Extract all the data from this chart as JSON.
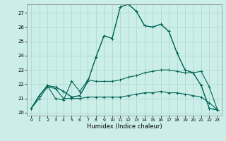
{
  "title": "",
  "xlabel": "Humidex (Indice chaleur)",
  "xlim": [
    -0.5,
    23.5
  ],
  "ylim": [
    19.8,
    27.6
  ],
  "xticks": [
    0,
    1,
    2,
    3,
    4,
    5,
    6,
    7,
    8,
    9,
    10,
    11,
    12,
    13,
    14,
    15,
    16,
    17,
    18,
    19,
    20,
    21,
    22,
    23
  ],
  "yticks": [
    20,
    21,
    22,
    23,
    24,
    25,
    26,
    27
  ],
  "background_color": "#cceee8",
  "grid_color": "#aad4ce",
  "line_color": "#006658",
  "series": [
    [
      20.3,
      21.2,
      21.9,
      21.8,
      21.5,
      21.1,
      21.2,
      22.2,
      23.9,
      25.4,
      25.2,
      27.4,
      27.6,
      27.1,
      26.1,
      26.0,
      26.2,
      25.7,
      24.2,
      23.0,
      22.8,
      21.9,
      20.3,
      20.2
    ],
    [
      20.3,
      21.2,
      21.9,
      21.8,
      21.5,
      21.1,
      21.2,
      22.2,
      23.9,
      25.4,
      25.2,
      27.4,
      27.6,
      27.1,
      26.1,
      26.0,
      26.2,
      25.7,
      24.2,
      23.0,
      22.8,
      21.9,
      20.3,
      20.2
    ],
    [
      20.3,
      21.2,
      21.9,
      21.0,
      20.9,
      22.2,
      21.5,
      22.3,
      22.2,
      22.2,
      22.2,
      22.3,
      22.5,
      22.6,
      22.8,
      22.9,
      23.0,
      23.0,
      22.9,
      22.8,
      22.8,
      22.9,
      21.8,
      20.2
    ],
    [
      20.3,
      21.0,
      21.8,
      21.7,
      21.0,
      21.0,
      21.0,
      21.1,
      21.1,
      21.1,
      21.1,
      21.1,
      21.2,
      21.3,
      21.4,
      21.4,
      21.5,
      21.4,
      21.4,
      21.3,
      21.2,
      21.1,
      20.7,
      20.2
    ]
  ]
}
